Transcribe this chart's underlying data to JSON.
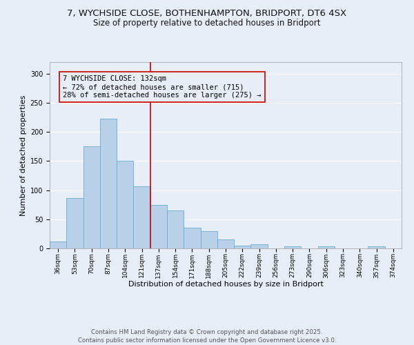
{
  "title_line1": "7, WYCHSIDE CLOSE, BOTHENHAMPTON, BRIDPORT, DT6 4SX",
  "title_line2": "Size of property relative to detached houses in Bridport",
  "xlabel": "Distribution of detached houses by size in Bridport",
  "ylabel": "Number of detached properties",
  "categories": [
    "36sqm",
    "53sqm",
    "70sqm",
    "87sqm",
    "104sqm",
    "121sqm",
    "137sqm",
    "154sqm",
    "171sqm",
    "188sqm",
    "205sqm",
    "222sqm",
    "239sqm",
    "256sqm",
    "273sqm",
    "290sqm",
    "306sqm",
    "323sqm",
    "340sqm",
    "357sqm",
    "374sqm"
  ],
  "values": [
    12,
    86,
    175,
    223,
    150,
    107,
    75,
    65,
    35,
    30,
    15,
    5,
    7,
    0,
    3,
    0,
    3,
    0,
    0,
    3,
    0
  ],
  "bar_color": "#b8d0e8",
  "bar_edge_color": "#6aaad4",
  "vline_color": "#cc0000",
  "annotation_text": "7 WYCHSIDE CLOSE: 132sqm\n← 72% of detached houses are smaller (715)\n28% of semi-detached houses are larger (275) →",
  "annotation_box_edge_color": "#cc0000",
  "ylim": [
    0,
    320
  ],
  "yticks": [
    0,
    50,
    100,
    150,
    200,
    250,
    300
  ],
  "footer_text": "Contains HM Land Registry data © Crown copyright and database right 2025.\nContains public sector information licensed under the Open Government Licence v3.0.",
  "bg_color": "#e8eef8",
  "grid_color": "#ffffff",
  "title_fontsize": 9.5,
  "subtitle_fontsize": 8.5,
  "tick_fontsize": 6.5,
  "label_fontsize": 8,
  "annotation_fontsize": 7.5,
  "footer_fontsize": 6.2
}
